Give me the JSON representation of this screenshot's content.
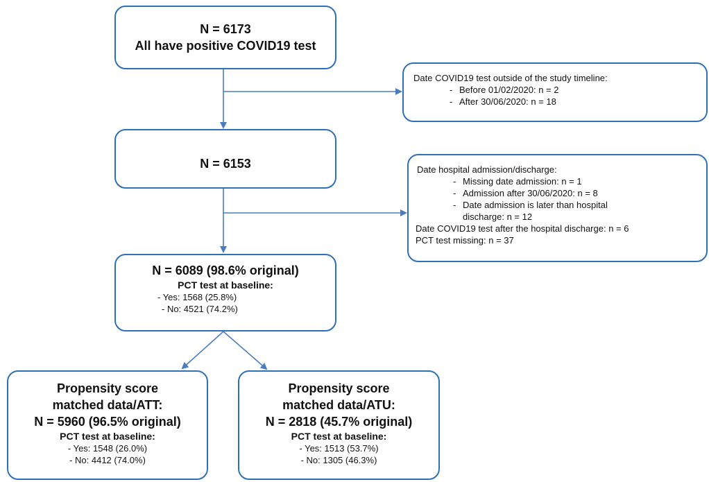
{
  "box_start": {
    "n": "N = 6173",
    "desc": "All have positive COVID19 test"
  },
  "exclusion_1": {
    "title": "Date COVID19 test outside of the study timeline:",
    "items": [
      "Before 01/02/2020: n = 2",
      "After 30/06/2020: n = 18"
    ]
  },
  "box_mid": {
    "n": "N = 6153"
  },
  "exclusion_2": {
    "title": "Date hospital admission/discharge:",
    "items": [
      "Missing date admission: n = 1",
      "Admission after 30/06/2020: n = 8",
      "Date admission is later than hospital",
      "discharge: n = 12"
    ],
    "extra": [
      "Date COVID19 test after the hospital discharge: n = 6",
      "PCT test missing: n = 37"
    ]
  },
  "box_final": {
    "n": "N = 6089 (98.6% original)",
    "pct_label": "PCT test at baseline:",
    "yes": "- Yes: 1568 (25.8%)",
    "no": "- No: 4521 (74.2%)"
  },
  "box_att": {
    "title1": "Propensity score",
    "title2": "matched data/ATT:",
    "n": "N = 5960 (96.5% original)",
    "pct_label": "PCT test at baseline:",
    "yes": "- Yes: 1548 (26.0%)",
    "no": "- No: 4412 (74.0%)"
  },
  "box_atu": {
    "title1": "Propensity score",
    "title2": "matched data/ATU:",
    "n": "N = 2818 (45.7% original)",
    "pct_label": "PCT test at baseline:",
    "yes": "- Yes: 1513 (53.7%)",
    "no": "- No: 1305 (46.3%)"
  },
  "colors": {
    "stroke": "#2f6fb6",
    "arrow": "#4a7cc0"
  }
}
